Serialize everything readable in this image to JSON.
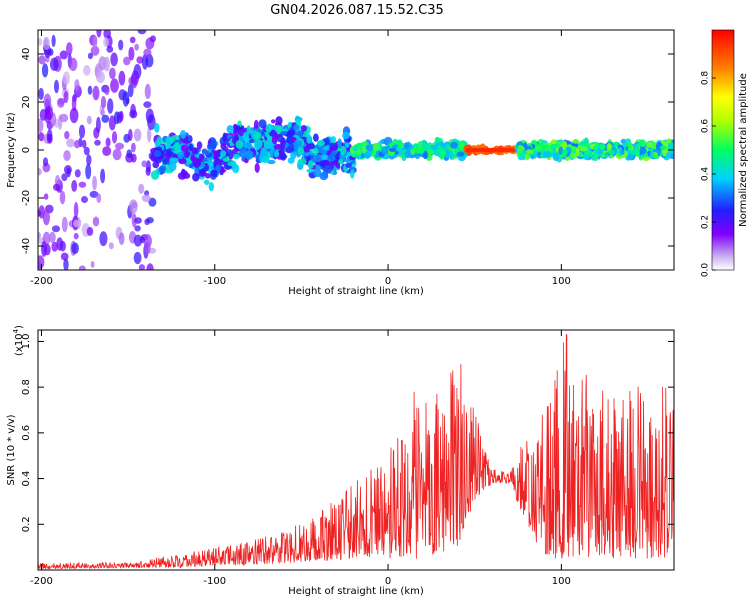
{
  "title": "GN04.2026.087.15.52.C35",
  "chart_data": [
    {
      "type": "heatmap",
      "title": "GN04.2026.087.15.52.C35",
      "xlabel": "Height of straight line (km)",
      "ylabel": "Frequency (Hz)",
      "xlim": [
        -202,
        165
      ],
      "ylim": [
        -50,
        50
      ],
      "xticks": [
        -200,
        -100,
        0,
        100
      ],
      "xtick_labels": [
        "-200",
        "-100",
        "0",
        "100"
      ],
      "yticks": [
        -40,
        -20,
        0,
        20,
        40
      ],
      "ytick_labels": [
        "-40",
        "-20",
        "0",
        "20",
        "40"
      ],
      "colorbar": {
        "label": "Normalized spectral amplitude",
        "range": [
          0,
          1
        ],
        "ticks": [
          0,
          0.2,
          0.4,
          0.6,
          0.8
        ],
        "tick_labels": [
          "0.0",
          "0.2",
          "0.4",
          "0.6",
          "0.8"
        ]
      },
      "description_regions": [
        {
          "x_range": [
            -202,
            -135
          ],
          "f_range": [
            -50,
            50
          ],
          "level": [
            0.05,
            0.25
          ],
          "pattern": "diffuse noise"
        },
        {
          "x_range": [
            -135,
            -20
          ],
          "f_range": [
            -12,
            12
          ],
          "level": [
            0.15,
            0.45
          ],
          "pattern": "broad band centered near 0 Hz"
        },
        {
          "x_range": [
            -20,
            45
          ],
          "f_range": [
            -4,
            4
          ],
          "level": [
            0.3,
            0.55
          ],
          "pattern": "narrow band"
        },
        {
          "x_range": [
            45,
            75
          ],
          "f_range": [
            -1,
            1
          ],
          "level": [
            0.85,
            0.95
          ],
          "pattern": "strong narrow line"
        },
        {
          "x_range": [
            75,
            165
          ],
          "f_range": [
            -4,
            4
          ],
          "level": [
            0.3,
            0.6
          ],
          "pattern": "narrow band"
        }
      ]
    },
    {
      "type": "line",
      "xlabel": "Height of straight line (km)",
      "ylabel": "SNR (10 * v/v)",
      "y_multiplier": "(x10",
      "y_multiplier_exp": "4",
      "y_multiplier_close": ")",
      "xlim": [
        -202,
        165
      ],
      "ylim": [
        0,
        1.05
      ],
      "xticks": [
        -200,
        -100,
        0,
        100
      ],
      "xtick_labels": [
        "-200",
        "-100",
        "0",
        "100"
      ],
      "yticks": [
        0.2,
        0.4,
        0.6,
        0.8,
        1.0
      ],
      "ytick_labels": [
        "0.2",
        "0.4",
        "0.6",
        "0.8",
        "1.0"
      ],
      "series": [
        {
          "name": "SNR",
          "color": "#ee2222",
          "envelope_x": [
            -202,
            -150,
            -120,
            -100,
            -80,
            -60,
            -40,
            -20,
            0,
            20,
            40,
            50,
            60,
            70,
            80,
            90,
            100,
            110,
            120,
            140,
            165
          ],
          "envelope_max": [
            0.03,
            0.035,
            0.07,
            0.1,
            0.13,
            0.17,
            0.25,
            0.38,
            0.55,
            0.75,
            0.9,
            0.72,
            0.45,
            0.42,
            0.6,
            0.7,
            1.02,
            0.95,
            0.78,
            0.85,
            0.8
          ],
          "envelope_min": [
            0.005,
            0.01,
            0.01,
            0.02,
            0.02,
            0.03,
            0.04,
            0.05,
            0.05,
            0.05,
            0.1,
            0.3,
            0.38,
            0.38,
            0.2,
            0.05,
            0.05,
            0.05,
            0.05,
            0.05,
            0.05
          ],
          "peaks": [
            {
              "x": 103,
              "y": 1.03
            },
            {
              "x": 42,
              "y": 0.9
            },
            {
              "x": 15,
              "y": 0.78
            }
          ]
        }
      ]
    }
  ]
}
